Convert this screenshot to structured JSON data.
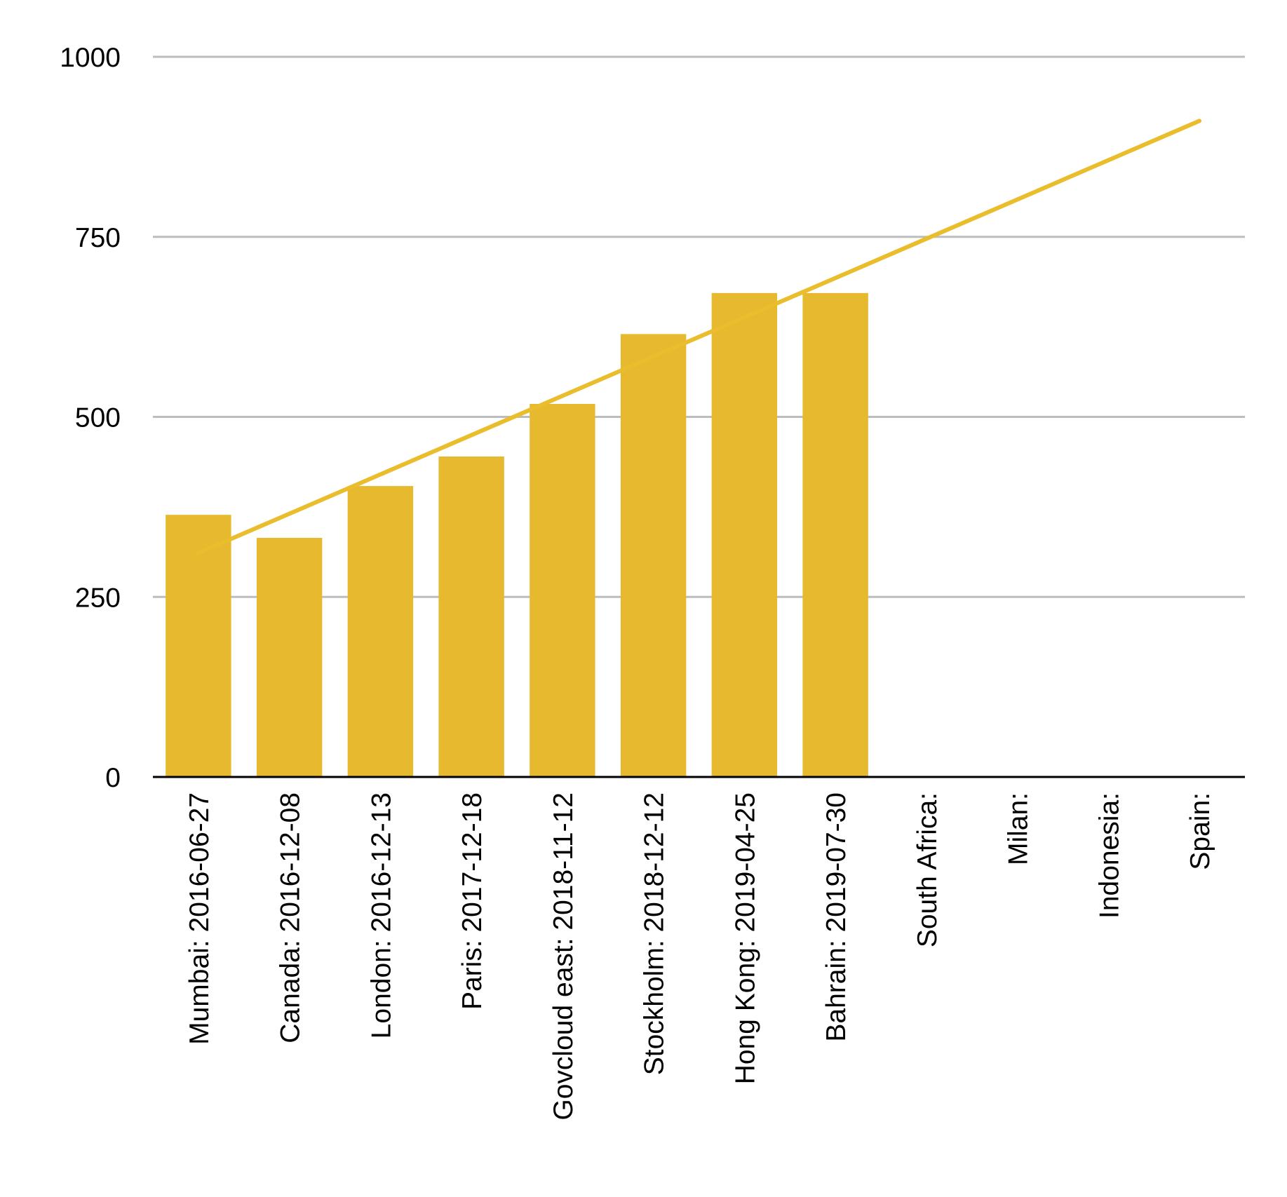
{
  "chart_data": {
    "type": "bar",
    "title": "",
    "xlabel": "",
    "ylabel": "",
    "ylim": [
      0,
      1000
    ],
    "yticks": [
      0,
      250,
      500,
      750,
      1000
    ],
    "grid": true,
    "legend": "none",
    "categories": [
      "Mumbai: 2016-06-27",
      "Canada: 2016-12-08",
      "London: 2016-12-13",
      "Paris: 2017-12-18",
      "Govcloud east: 2018-11-12",
      "Stockholm: 2018-12-12",
      "Hong Kong: 2019-04-25",
      "Bahrain: 2019-07-30",
      "South Africa:",
      "Milan:",
      "Indonesia:",
      "Spain:"
    ],
    "series": [
      {
        "values": [
          364,
          332,
          404,
          445,
          518,
          615,
          672,
          672,
          null,
          null,
          null,
          null
        ],
        "color": "#e6b92e"
      }
    ],
    "trendline": {
      "type": "linear",
      "color": "#e9bd2c",
      "start": 311,
      "end": 911
    }
  }
}
